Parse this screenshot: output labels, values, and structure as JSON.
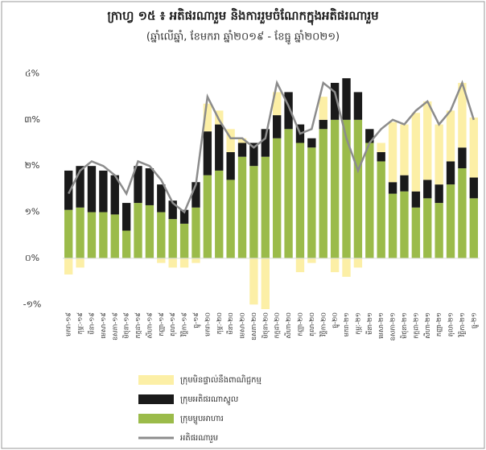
{
  "chart_data": {
    "type": "stacked-bar-line",
    "title": "ក្រាហ្វ ១៥ ៖ អតិផរណារួម និងការរួមចំណែកក្នុងអតិផរណារួម",
    "subtitle": "(ឆ្នាំលើឆ្នាំ, ខែមករា ឆ្នាំ២០១៩ - ខែធ្នូ ឆ្នាំ២០២១)",
    "categories": [
      "មករា-១៩",
      "កុម្ភៈ-១៩",
      "មីនា-១៩",
      "មេសា-១៩",
      "ឧសភា-១៩",
      "មិថុនា-១៩",
      "កក្កដា-១៩",
      "សីហា-១៩",
      "កញ្ញា-១៩",
      "តុលា-១៩",
      "វិច្ឆិកា-១៩",
      "ធ្នូ-១៩",
      "មករា-២០",
      "កុម្ភៈ-២០",
      "មីនា-២០",
      "មេសា-២០",
      "ឧសភា-២០",
      "មិថុនា-២០",
      "កក្កដា-២០",
      "សីហា-២០",
      "កញ្ញា-២០",
      "តុលា-២០",
      "វិច្ឆិកា-២០",
      "ធ្នូ-២០",
      "មករា-២១",
      "កុម្ភៈ-២១",
      "មីនា-២១",
      "មេសា-២១",
      "ឧសភា-២១",
      "មិថុនា-២១",
      "កក្កដា-២១",
      "សីហា-២១",
      "កញ្ញា-២១",
      "តុលា-២១",
      "វិច្ឆិកា-២១",
      "ធ្នូ-២១"
    ],
    "series": [
      {
        "name": "ក្រុមម្ហូបអាហារ",
        "color": "#9bbb4a",
        "kind": "bar",
        "values": [
          1.05,
          1.1,
          1.0,
          1.0,
          0.95,
          0.6,
          1.2,
          1.15,
          1.0,
          0.85,
          0.75,
          1.1,
          1.8,
          1.9,
          1.7,
          2.2,
          2.0,
          2.2,
          2.6,
          2.8,
          2.5,
          2.4,
          2.8,
          3.0,
          3.0,
          3.0,
          2.5,
          2.1,
          1.4,
          1.45,
          1.1,
          1.3,
          1.2,
          1.6,
          1.95,
          1.3
        ]
      },
      {
        "name": "ក្រុមអតិផរណាស្នូល",
        "color": "#1a1a1a",
        "kind": "bar",
        "values": [
          0.85,
          0.9,
          1.0,
          0.9,
          0.85,
          0.6,
          0.8,
          0.8,
          0.6,
          0.4,
          0.3,
          0.55,
          0.95,
          1.0,
          0.6,
          0.3,
          0.5,
          0.6,
          0.5,
          0.8,
          0.4,
          0.2,
          0.2,
          0.8,
          0.9,
          0.6,
          0.3,
          0.2,
          0.25,
          0.35,
          0.35,
          0.4,
          0.4,
          0.5,
          0.45,
          0.45
        ]
      },
      {
        "name": "ក្រុមមិនផ្ទាល់នឹងពាណិជ្ជកម្ម",
        "color": "#fcefa6",
        "kind": "bar",
        "values": [
          -0.35,
          -0.2,
          0,
          0,
          0,
          0,
          0,
          0,
          -0.1,
          -0.2,
          -0.2,
          -0.1,
          0.6,
          0.3,
          0.5,
          0.1,
          -1.0,
          -1.1,
          0.5,
          0,
          -0.3,
          -0.1,
          0.5,
          -0.3,
          -0.4,
          -0.2,
          0,
          0.2,
          1.3,
          1.1,
          1.7,
          1.7,
          1.3,
          1.1,
          1.4,
          1.3
        ]
      },
      {
        "name": "អតិផរណារួម",
        "color": "#8c8c8c",
        "kind": "line",
        "values": [
          1.4,
          1.9,
          2.1,
          2.0,
          1.8,
          1.4,
          2.1,
          2.0,
          1.7,
          1.2,
          1.0,
          1.6,
          3.5,
          3.0,
          2.6,
          2.6,
          2.4,
          2.6,
          3.8,
          3.3,
          2.7,
          2.8,
          3.8,
          3.6,
          2.6,
          1.9,
          2.5,
          2.8,
          3.0,
          2.9,
          3.2,
          3.4,
          2.9,
          3.2,
          3.8,
          3.0
        ]
      }
    ],
    "legend_order": [
      2,
      1,
      0,
      3
    ],
    "ylim": [
      -1.1,
      4.2
    ],
    "yticks": [
      {
        "value": -1,
        "label": "-១%"
      },
      {
        "value": 0,
        "label": "០%"
      },
      {
        "value": 1,
        "label": "១%"
      },
      {
        "value": 2,
        "label": "២%"
      },
      {
        "value": 3,
        "label": "៣%"
      },
      {
        "value": 4,
        "label": "៤%"
      }
    ]
  }
}
